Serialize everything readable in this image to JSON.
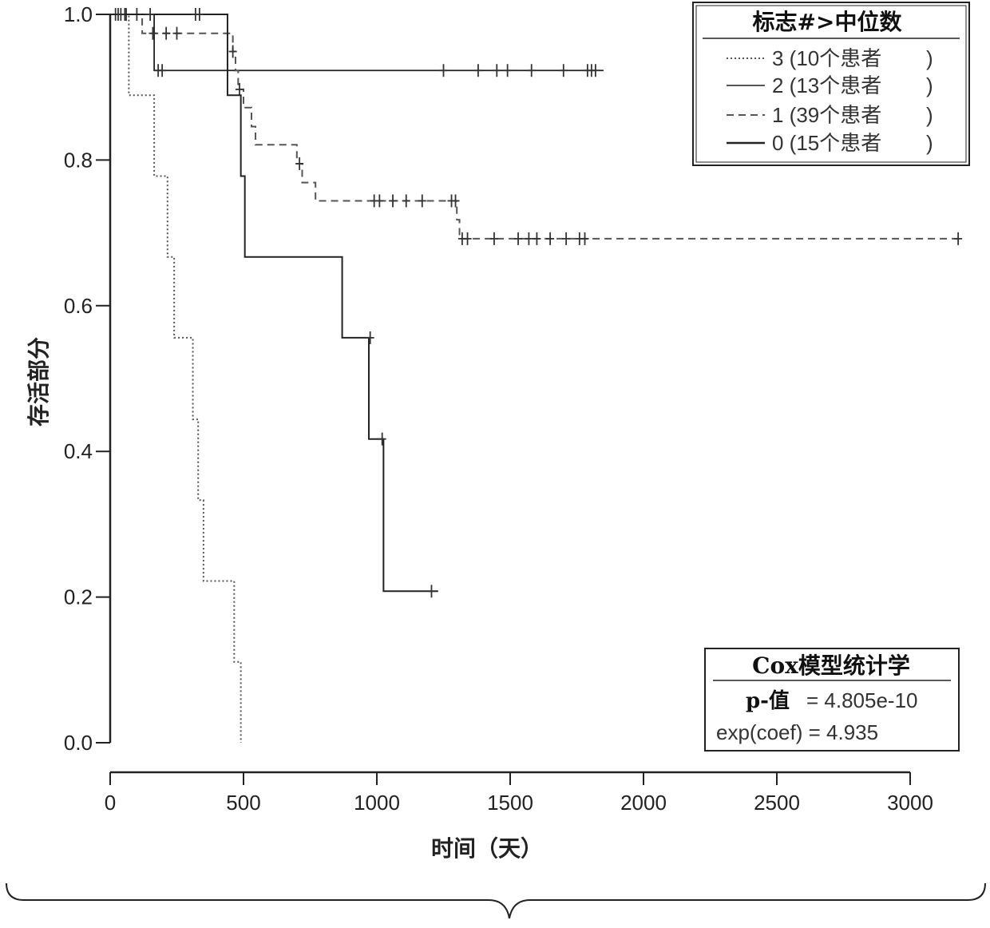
{
  "chart_data": {
    "type": "line",
    "xlabel": "时间（天）",
    "ylabel": "存活部分",
    "xlim": [
      0,
      3000
    ],
    "ylim": [
      0,
      1.0
    ],
    "x_ticks": [
      "0",
      "500",
      "1000",
      "1500",
      "2000",
      "2500",
      "3000"
    ],
    "y_ticks": [
      "0.0",
      "0.2",
      "0.4",
      "0.6",
      "0.8",
      "1.0"
    ],
    "grid": false,
    "legend_placement": "top-right",
    "legend": {
      "title": "标志#>中位数",
      "entries": [
        {
          "key": "3",
          "label": "3 (10个患者",
          "close": ")"
        },
        {
          "key": "2",
          "label": "2 (13个患者",
          "close": ")"
        },
        {
          "key": "1",
          "label": "1 (39个患者",
          "close": ")"
        },
        {
          "key": "0",
          "label": "0 (15个患者",
          "close": ")"
        }
      ]
    },
    "stats": {
      "title": "Cox模型统计学",
      "p_label": "p-值",
      "p_value": "= 4.805e-10",
      "exp_coef": "exp(coef) = 4.935"
    },
    "series": [
      {
        "name": "3 (10个患者 )",
        "style": "dotted",
        "steps": [
          [
            0,
            1.0
          ],
          [
            70,
            0.889
          ],
          [
            165,
            0.778
          ],
          [
            215,
            0.667
          ],
          [
            240,
            0.556
          ],
          [
            310,
            0.444
          ],
          [
            330,
            0.333
          ],
          [
            350,
            0.222
          ],
          [
            465,
            0.111
          ],
          [
            490,
            0.0
          ]
        ],
        "censored": [
          [
            30,
            1.0
          ],
          [
            55,
            1.0
          ]
        ]
      },
      {
        "name": "2 (13个患者 )",
        "style": "solid",
        "steps": [
          [
            0,
            1.0
          ],
          [
            165,
            0.923
          ],
          [
            1850,
            0.923
          ]
        ],
        "censored": [
          [
            20,
            1.0
          ],
          [
            60,
            1.0
          ],
          [
            180,
            0.923
          ],
          [
            195,
            0.923
          ],
          [
            1250,
            0.923
          ],
          [
            1380,
            0.923
          ],
          [
            1450,
            0.923
          ],
          [
            1490,
            0.923
          ],
          [
            1580,
            0.923
          ],
          [
            1700,
            0.923
          ],
          [
            1790,
            0.923
          ],
          [
            1805,
            0.923
          ],
          [
            1820,
            0.923
          ]
        ]
      },
      {
        "name": "1 (39个患者 )",
        "style": "dashed",
        "steps": [
          [
            0,
            1.0
          ],
          [
            120,
            0.974
          ],
          [
            460,
            0.949
          ],
          [
            470,
            0.923
          ],
          [
            480,
            0.897
          ],
          [
            500,
            0.872
          ],
          [
            530,
            0.846
          ],
          [
            545,
            0.821
          ],
          [
            700,
            0.795
          ],
          [
            720,
            0.769
          ],
          [
            770,
            0.744
          ],
          [
            1300,
            0.718
          ],
          [
            1310,
            0.692
          ],
          [
            3200,
            0.692
          ]
        ],
        "censored": [
          [
            100,
            1.0
          ],
          [
            160,
            0.974
          ],
          [
            210,
            0.974
          ],
          [
            250,
            0.974
          ],
          [
            460,
            0.949
          ],
          [
            485,
            0.897
          ],
          [
            710,
            0.795
          ],
          [
            990,
            0.744
          ],
          [
            1010,
            0.744
          ],
          [
            1060,
            0.744
          ],
          [
            1110,
            0.744
          ],
          [
            1170,
            0.744
          ],
          [
            1280,
            0.744
          ],
          [
            1295,
            0.744
          ],
          [
            1320,
            0.692
          ],
          [
            1340,
            0.692
          ],
          [
            1440,
            0.692
          ],
          [
            1530,
            0.692
          ],
          [
            1570,
            0.692
          ],
          [
            1600,
            0.692
          ],
          [
            1650,
            0.692
          ],
          [
            1710,
            0.692
          ],
          [
            1760,
            0.692
          ],
          [
            1780,
            0.692
          ],
          [
            3180,
            0.692
          ]
        ]
      },
      {
        "name": "0 (15个患者 )",
        "style": "solid",
        "steps": [
          [
            0,
            1.0
          ],
          [
            440,
            0.889
          ],
          [
            490,
            0.778
          ],
          [
            505,
            0.667
          ],
          [
            870,
            0.556
          ],
          [
            970,
            0.417
          ],
          [
            1025,
            0.208
          ],
          [
            1230,
            0.208
          ]
        ],
        "censored": [
          [
            40,
            1.0
          ],
          [
            150,
            1.0
          ],
          [
            320,
            1.0
          ],
          [
            335,
            1.0
          ],
          [
            975,
            0.556
          ],
          [
            1020,
            0.417
          ],
          [
            1205,
            0.208
          ]
        ]
      }
    ]
  }
}
